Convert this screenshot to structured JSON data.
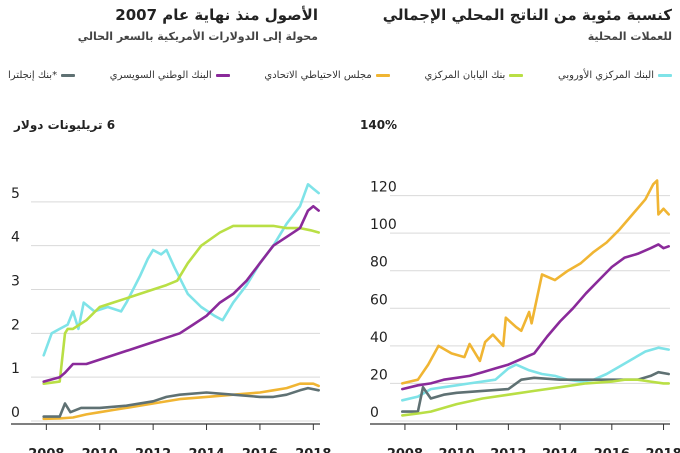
{
  "right_panel": {
    "title": "كنسبة مئوية من الناتج المحلي الإجمالي",
    "subtitle": "للعملات المحلية"
  },
  "left_panel": {
    "title": "الأصول منذ نهاية عام 2007",
    "subtitle": "محولة إلى الدولارات الأمريكية بالسعر الحالي"
  },
  "legend": [
    {
      "label": "البنك المركزي الأوروبي",
      "color": "#7fe3e8"
    },
    {
      "label": "بنك اليابان المركزي",
      "color": "#b9df45"
    },
    {
      "label": "مجلس الاحتياطي الاتحادي",
      "color": "#f0b533"
    },
    {
      "label": "البنك الوطني السويسري",
      "color": "#8a2a9a"
    },
    {
      "label": "*بنك إنجلترا",
      "color": "#5f7173"
    }
  ],
  "chart_data": [
    {
      "type": "line",
      "ylabel": "140%",
      "ylim": [
        0,
        140
      ],
      "yticks": [
        0,
        20,
        40,
        60,
        80,
        100,
        120
      ],
      "ytick_labels": [
        "0",
        "20",
        "40",
        "60",
        "80",
        "100",
        "120"
      ],
      "xlim": [
        2007.5,
        2018.25
      ],
      "xtick_labels": [
        "2008",
        "2010",
        "2012",
        "2014",
        "2016",
        "2018"
      ],
      "series": [
        {
          "name": "مجلس الاحتياطي الاتحادي",
          "color": "#f0b533",
          "x": [
            2007.9,
            2008.5,
            2008.9,
            2009.3,
            2009.8,
            2010.3,
            2010.5,
            2010.9,
            2011.1,
            2011.4,
            2011.8,
            2011.9,
            2012.3,
            2012.5,
            2012.8,
            2012.9,
            2013.3,
            2013.8,
            2014.3,
            2014.8,
            2015.3,
            2015.8,
            2016.3,
            2016.8,
            2017.3,
            2017.6,
            2017.75,
            2017.8,
            2018.0,
            2018.2
          ],
          "y": [
            20,
            22,
            30,
            40,
            36,
            34,
            41,
            32,
            42,
            46,
            40,
            55,
            50,
            48,
            58,
            52,
            78,
            75,
            80,
            84,
            90,
            95,
            102,
            110,
            118,
            126,
            128,
            110,
            113,
            110
          ]
        },
        {
          "name": "البنك الوطني السويسري",
          "color": "#8a2a9a",
          "x": [
            2007.9,
            2008.5,
            2009.0,
            2009.5,
            2010.0,
            2010.5,
            2011.0,
            2011.5,
            2012.0,
            2012.5,
            2013.0,
            2013.5,
            2014.0,
            2014.5,
            2015.0,
            2015.5,
            2016.0,
            2016.5,
            2017.0,
            2017.5,
            2017.8,
            2018.0,
            2018.2
          ],
          "y": [
            17,
            19,
            20,
            22,
            23,
            24,
            26,
            28,
            30,
            33,
            36,
            45,
            53,
            60,
            68,
            75,
            82,
            87,
            89,
            92,
            94,
            92,
            93
          ]
        },
        {
          "name": "البنك المركزي الأوروبي",
          "color": "#7fe3e8",
          "x": [
            2007.9,
            2008.5,
            2009.0,
            2009.5,
            2010.0,
            2010.5,
            2011.0,
            2011.5,
            2012.0,
            2012.3,
            2012.8,
            2013.3,
            2013.8,
            2014.3,
            2014.8,
            2015.3,
            2015.8,
            2016.3,
            2016.8,
            2017.3,
            2017.8,
            2018.2
          ],
          "y": [
            11,
            13,
            17,
            18,
            19,
            20,
            21,
            22,
            28,
            30,
            27,
            25,
            24,
            22,
            21,
            22,
            25,
            29,
            33,
            37,
            39,
            38
          ]
        },
        {
          "name": "بنك إنجلترا",
          "color": "#5f7173",
          "x": [
            2007.9,
            2008.5,
            2008.7,
            2009.0,
            2009.5,
            2010.0,
            2011.0,
            2012.0,
            2012.5,
            2013.0,
            2014.0,
            2015.0,
            2016.0,
            2016.5,
            2017.0,
            2017.5,
            2017.8,
            2018.2
          ],
          "y": [
            5,
            5,
            18,
            12,
            14,
            15,
            16,
            17,
            22,
            23,
            22,
            22,
            22,
            22,
            22,
            24,
            26,
            25
          ]
        },
        {
          "name": "بنك اليابان المركزي",
          "color": "#b9df45",
          "x": [
            2007.9,
            2008.5,
            2009.0,
            2009.5,
            2010.0,
            2011.0,
            2012.0,
            2013.0,
            2014.0,
            2015.0,
            2016.0,
            2016.5,
            2017.0,
            2017.5,
            2018.0,
            2018.2
          ],
          "y": [
            3,
            4,
            5,
            7,
            9,
            12,
            14,
            16,
            18,
            20,
            21,
            22,
            22,
            21,
            20,
            20
          ]
        }
      ]
    },
    {
      "type": "line",
      "ylabel": "6 تريليونات دولار",
      "ylim": [
        0,
        6
      ],
      "yticks": [
        0,
        1,
        2,
        3,
        4,
        5
      ],
      "ytick_labels": [
        "0",
        "1",
        "2",
        "3",
        "4",
        "5"
      ],
      "xlim": [
        2007.5,
        2018.25
      ],
      "xtick_labels": [
        "2008",
        "2010",
        "2012",
        "2014",
        "2016",
        "2018"
      ],
      "series": [
        {
          "name": "البنك المركزي الأوروبي",
          "color": "#7fe3e8",
          "x": [
            2007.9,
            2008.2,
            2008.5,
            2008.8,
            2009.0,
            2009.2,
            2009.4,
            2009.8,
            2010.3,
            2010.8,
            2011.0,
            2011.5,
            2011.8,
            2012.0,
            2012.3,
            2012.5,
            2012.8,
            2013.3,
            2013.8,
            2014.3,
            2014.6,
            2015.0,
            2015.5,
            2016.0,
            2016.5,
            2017.0,
            2017.5,
            2017.8,
            2018.0,
            2018.2
          ],
          "y": [
            1.5,
            2.0,
            2.1,
            2.2,
            2.5,
            2.1,
            2.7,
            2.5,
            2.6,
            2.5,
            2.7,
            3.3,
            3.7,
            3.9,
            3.8,
            3.9,
            3.5,
            2.9,
            2.6,
            2.4,
            2.3,
            2.7,
            3.1,
            3.6,
            4.0,
            4.5,
            4.9,
            5.4,
            5.3,
            5.2
          ]
        },
        {
          "name": "بنك اليابان المركزي",
          "color": "#b9df45",
          "x": [
            2007.9,
            2008.5,
            2008.7,
            2008.8,
            2009.0,
            2009.5,
            2010.0,
            2010.5,
            2011.0,
            2011.5,
            2012.0,
            2012.5,
            2012.9,
            2013.3,
            2013.8,
            2014.5,
            2015.0,
            2015.5,
            2016.0,
            2016.5,
            2017.0,
            2017.5,
            2017.9,
            2018.2
          ],
          "y": [
            0.85,
            0.9,
            2.0,
            2.1,
            2.1,
            2.3,
            2.6,
            2.7,
            2.8,
            2.9,
            3.0,
            3.1,
            3.2,
            3.6,
            4.0,
            4.3,
            4.45,
            4.45,
            4.45,
            4.45,
            4.4,
            4.4,
            4.35,
            4.3
          ]
        },
        {
          "name": "البنك الوطني السويسري",
          "color": "#8a2a9a",
          "x": [
            2007.9,
            2008.5,
            2008.7,
            2009.0,
            2009.5,
            2010.0,
            2010.5,
            2011.0,
            2011.5,
            2012.0,
            2012.5,
            2013.0,
            2013.5,
            2014.0,
            2014.5,
            2015.0,
            2015.5,
            2016.0,
            2016.5,
            2017.0,
            2017.5,
            2017.8,
            2018.0,
            2018.2
          ],
          "y": [
            0.9,
            1.0,
            1.1,
            1.3,
            1.3,
            1.4,
            1.5,
            1.6,
            1.7,
            1.8,
            1.9,
            2.0,
            2.2,
            2.4,
            2.7,
            2.9,
            3.2,
            3.6,
            4.0,
            4.2,
            4.4,
            4.8,
            4.9,
            4.8
          ]
        },
        {
          "name": "مجلس الاحتياطي الاتحادي",
          "color": "#f0b533",
          "x": [
            2007.9,
            2008.5,
            2009.0,
            2009.5,
            2010.0,
            2010.5,
            2011.0,
            2012.0,
            2013.0,
            2014.0,
            2015.0,
            2016.0,
            2016.5,
            2017.0,
            2017.5,
            2018.0,
            2018.2
          ],
          "y": [
            0.05,
            0.06,
            0.08,
            0.15,
            0.2,
            0.25,
            0.3,
            0.4,
            0.5,
            0.55,
            0.6,
            0.65,
            0.7,
            0.75,
            0.85,
            0.85,
            0.8
          ]
        },
        {
          "name": "بنك إنجلترا",
          "color": "#5f7173",
          "x": [
            2007.9,
            2008.5,
            2008.7,
            2008.9,
            2009.3,
            2010.0,
            2011.0,
            2012.0,
            2012.5,
            2013.0,
            2014.0,
            2015.0,
            2016.0,
            2016.5,
            2017.0,
            2017.5,
            2017.8,
            2018.2
          ],
          "y": [
            0.1,
            0.1,
            0.4,
            0.2,
            0.3,
            0.3,
            0.35,
            0.45,
            0.55,
            0.6,
            0.65,
            0.6,
            0.55,
            0.55,
            0.6,
            0.7,
            0.75,
            0.7
          ]
        }
      ]
    }
  ]
}
